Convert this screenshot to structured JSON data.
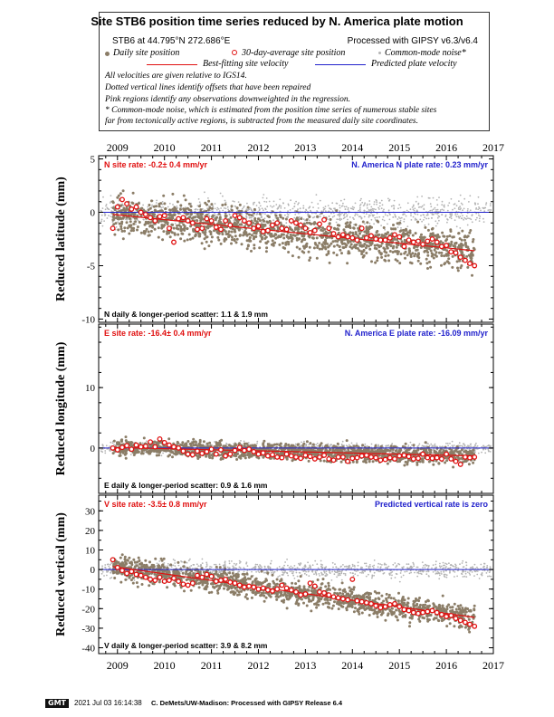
{
  "header": {
    "title": "Site STB6 position time series reduced by N. America plate motion",
    "site_line": "STB6 at 44.795°N 272.686°E",
    "processed": "Processed with GIPSY v6.3/v6.4",
    "legend": {
      "daily": "Daily site position",
      "avg30": "30-day-average site position",
      "cm_noise": "Common-mode noise*",
      "best_fit": "Best-fitting site velocity",
      "predicted": "Predicted plate velocity"
    },
    "notes": [
      "All velocities are given relative to IGS14.",
      "Dotted vertical lines identify offsets that have been repaired",
      "Pink regions identify any observations downweighted in the regression.",
      "* Common-mode noise, which is estimated from the position time series of numerous stable sites",
      "far from tectonically active regions, is subtracted from the measured daily site coordinates."
    ]
  },
  "footer": {
    "gmt_logo": "GMT",
    "timestamp": "2021 Jul 03 16:14:38",
    "credit": "C. DeMets/UW-Madison: Processed with GIPSY Release 6.4"
  },
  "colors": {
    "daily": "#8b7d67",
    "cm": "#b4b4b4",
    "avg": "#e01010",
    "fit": "#e01010",
    "pred": "#2222cc"
  },
  "chart_data": [
    {
      "type": "scatter",
      "component": "N",
      "ylabel": "Reduced latitude (mm)",
      "x_ticks": [
        "2009",
        "2010",
        "2011",
        "2012",
        "2013",
        "2014",
        "2015",
        "2016",
        "2017"
      ],
      "xlim": [
        2008.6,
        2017.0
      ],
      "ylim": [
        -10.3,
        5.3
      ],
      "y_ticks": [
        -10,
        -5,
        0,
        5
      ],
      "rate_label": "N site rate:  -0.2± 0.4 mm/yr",
      "plate_label": "N. America N plate rate: 0.23 mm/yr",
      "scatter_label": "N daily & longer-period scatter:   1.1 &   1.9 mm",
      "fit_line": {
        "x": [
          2008.9,
          2016.6
        ],
        "y": [
          -0.2,
          -3.6
        ]
      },
      "predicted_line": {
        "y": 0
      },
      "avg_30day": {
        "x": [
          2008.9,
          2009.0,
          2009.1,
          2009.2,
          2009.3,
          2009.4,
          2009.5,
          2009.6,
          2009.7,
          2009.8,
          2009.9,
          2010.0,
          2010.1,
          2010.2,
          2010.3,
          2010.4,
          2010.5,
          2010.6,
          2010.7,
          2010.8,
          2010.9,
          2011.0,
          2011.1,
          2011.2,
          2011.3,
          2011.4,
          2011.5,
          2011.6,
          2011.7,
          2011.8,
          2011.9,
          2012.0,
          2012.1,
          2012.2,
          2012.3,
          2012.4,
          2012.5,
          2012.6,
          2012.7,
          2012.8,
          2012.9,
          2013.0,
          2013.1,
          2013.2,
          2013.3,
          2013.4,
          2013.5,
          2013.6,
          2013.7,
          2013.8,
          2013.9,
          2014.0,
          2014.1,
          2014.2,
          2014.3,
          2014.4,
          2014.5,
          2014.6,
          2014.7,
          2014.8,
          2014.9,
          2015.0,
          2015.1,
          2015.2,
          2015.3,
          2015.4,
          2015.5,
          2015.6,
          2015.7,
          2015.8,
          2015.9,
          2016.0,
          2016.1,
          2016.2,
          2016.3,
          2016.4,
          2016.5,
          2016.6
        ],
        "y": [
          -1.5,
          0.5,
          1.2,
          0.8,
          0.3,
          0.5,
          0.0,
          -0.2,
          -0.5,
          -0.8,
          -0.4,
          -0.3,
          -1.5,
          -2.8,
          -0.6,
          -0.5,
          -0.8,
          -1.0,
          -1.6,
          -1.5,
          -0.6,
          -0.8,
          -1.4,
          -1.6,
          -0.8,
          -1.2,
          -0.3,
          -0.5,
          -0.8,
          -1.0,
          -1.5,
          -1.3,
          -1.8,
          -1.7,
          -1.2,
          -1.0,
          -1.5,
          -1.6,
          -0.8,
          -1.0,
          -1.2,
          -1.5,
          -1.9,
          -1.7,
          -1.1,
          -0.7,
          -1.5,
          -2.0,
          -2.3,
          -2.1,
          -2.3,
          -2.4,
          -2.6,
          -1.5,
          -2.4,
          -2.2,
          -2.5,
          -2.6,
          -2.6,
          -2.4,
          -2.1,
          -2.3,
          -3.2,
          -2.6,
          -2.8,
          -2.7,
          -3.0,
          -2.7,
          -2.5,
          -2.8,
          -3.2,
          -3.1,
          -3.7,
          -3.8,
          -4.2,
          -4.5,
          -4.8,
          -5.0
        ]
      }
    },
    {
      "type": "scatter",
      "component": "E",
      "ylabel": "Reduced longitude (mm)",
      "x_ticks": [
        "2009",
        "2010",
        "2011",
        "2012",
        "2013",
        "2014",
        "2015",
        "2016",
        "2017"
      ],
      "xlim": [
        2008.6,
        2017.0
      ],
      "ylim": [
        -7.5,
        20.5
      ],
      "y_ticks": [
        0,
        10
      ],
      "rate_label": "E site rate:  -16.4± 0.4 mm/yr",
      "plate_label": "N. America E plate rate: -16.09 mm/yr",
      "scatter_label": "E daily & longer-period scatter:   0.9 &   1.6 mm",
      "fit_line": {
        "x": [
          2008.9,
          2016.6
        ],
        "y": [
          0.1,
          -1.3
        ]
      },
      "predicted_line": {
        "y": 0
      },
      "avg_30day": {
        "x": [
          2008.9,
          2009.0,
          2009.1,
          2009.2,
          2009.3,
          2009.4,
          2009.5,
          2009.6,
          2009.7,
          2009.8,
          2009.9,
          2010.0,
          2010.1,
          2010.2,
          2010.3,
          2010.4,
          2010.5,
          2010.6,
          2010.7,
          2010.8,
          2010.9,
          2011.0,
          2011.1,
          2011.2,
          2011.3,
          2011.4,
          2011.5,
          2011.6,
          2011.7,
          2011.8,
          2011.9,
          2012.0,
          2012.1,
          2012.2,
          2012.3,
          2012.4,
          2012.5,
          2012.6,
          2012.7,
          2012.8,
          2012.9,
          2013.0,
          2013.1,
          2013.2,
          2013.3,
          2013.4,
          2013.5,
          2013.6,
          2013.7,
          2013.8,
          2013.9,
          2014.0,
          2014.1,
          2014.2,
          2014.3,
          2014.4,
          2014.5,
          2014.6,
          2014.7,
          2014.8,
          2014.9,
          2015.0,
          2015.1,
          2015.2,
          2015.3,
          2015.4,
          2015.5,
          2015.6,
          2015.7,
          2015.8,
          2015.9,
          2016.0,
          2016.1,
          2016.2,
          2016.3,
          2016.4,
          2016.5,
          2016.6
        ],
        "y": [
          0.0,
          -0.3,
          0.1,
          0.4,
          -0.2,
          0.5,
          0.2,
          0.3,
          1.0,
          0.2,
          1.5,
          0.9,
          0.5,
          0.2,
          0.0,
          -0.5,
          -1.0,
          -1.1,
          -0.5,
          -0.9,
          -0.6,
          -0.2,
          -1.0,
          -0.3,
          -1.3,
          -1.0,
          -0.4,
          0.1,
          -0.4,
          -0.2,
          -0.6,
          -1.0,
          -0.8,
          -1.3,
          -1.1,
          -1.5,
          -1.6,
          -1.0,
          -1.3,
          -1.5,
          -1.7,
          -1.2,
          -1.4,
          -1.8,
          -1.5,
          -1.2,
          -1.8,
          -2.0,
          -1.5,
          -1.5,
          -2.2,
          -1.7,
          -1.6,
          -1.3,
          -1.2,
          -1.5,
          -1.6,
          -2.0,
          -1.9,
          -1.6,
          -1.8,
          -1.3,
          -1.2,
          -1.4,
          -1.8,
          -1.7,
          -1.0,
          -1.6,
          -1.7,
          -1.6,
          -1.8,
          -1.0,
          -1.8,
          -2.2,
          -2.7,
          -1.5,
          -1.6,
          -1.5
        ]
      }
    },
    {
      "type": "scatter",
      "component": "V",
      "ylabel": "Reduced vertical (mm)",
      "x_ticks": [
        "2009",
        "2010",
        "2011",
        "2012",
        "2013",
        "2014",
        "2015",
        "2016",
        "2017"
      ],
      "xlim": [
        2008.6,
        2017.0
      ],
      "ylim": [
        -43,
        38
      ],
      "y_ticks": [
        -40,
        -30,
        -20,
        -10,
        0,
        10,
        20,
        30
      ],
      "rate_label": "V site rate:  -3.5± 0.8 mm/yr",
      "plate_label": "Predicted vertical rate is zero",
      "scatter_label": "V daily & longer-period scatter:   3.9 &   8.2 mm",
      "fit_line": {
        "x": [
          2008.9,
          2016.6
        ],
        "y": [
          1.5,
          -24.5
        ]
      },
      "predicted_line": {
        "y": 0
      },
      "avg_30day": {
        "x": [
          2008.9,
          2009.0,
          2009.1,
          2009.2,
          2009.3,
          2009.4,
          2009.5,
          2009.6,
          2009.7,
          2009.8,
          2009.9,
          2010.0,
          2010.1,
          2010.2,
          2010.3,
          2010.4,
          2010.5,
          2010.6,
          2010.7,
          2010.8,
          2010.9,
          2011.0,
          2011.1,
          2011.2,
          2011.3,
          2011.4,
          2011.5,
          2011.6,
          2011.7,
          2011.8,
          2011.9,
          2012.0,
          2012.1,
          2012.2,
          2012.3,
          2012.4,
          2012.5,
          2012.6,
          2012.7,
          2012.8,
          2012.9,
          2013.0,
          2013.1,
          2013.2,
          2013.3,
          2013.4,
          2013.5,
          2013.6,
          2013.7,
          2013.8,
          2013.9,
          2014.0,
          2014.1,
          2014.2,
          2014.3,
          2014.4,
          2014.5,
          2014.6,
          2014.7,
          2014.8,
          2014.9,
          2015.0,
          2015.1,
          2015.2,
          2015.3,
          2015.4,
          2015.5,
          2015.6,
          2015.7,
          2015.8,
          2015.9,
          2016.0,
          2016.1,
          2016.2,
          2016.3,
          2016.4,
          2016.5,
          2016.6
        ],
        "y": [
          5.0,
          1.0,
          -0.5,
          -2.0,
          -1.0,
          -2.5,
          -3.0,
          -4.0,
          -5.0,
          -5.5,
          -4.0,
          -6.0,
          -5.5,
          -4.5,
          -6.0,
          -7.5,
          -8.0,
          -7.0,
          -3.0,
          -4.0,
          -2.5,
          -3.5,
          -6.0,
          -5.5,
          -5.0,
          -6.5,
          -7.0,
          -8.0,
          -9.0,
          -8.5,
          -9.0,
          -10.0,
          -9.5,
          -10.5,
          -11.0,
          -10.0,
          -8.0,
          -9.5,
          -10.5,
          -11.5,
          -13.0,
          -12.5,
          -7.0,
          -8.5,
          -11.5,
          -12.0,
          -13.0,
          -14.0,
          -14.5,
          -15.0,
          -15.5,
          -5.0,
          -16.0,
          -16.5,
          -17.0,
          -17.5,
          -18.5,
          -19.5,
          -19.0,
          -18.0,
          -17.5,
          -19.0,
          -20.5,
          -21.0,
          -22.0,
          -22.5,
          -22.0,
          -21.5,
          -21.0,
          -22.0,
          -23.0,
          -24.0,
          -23.5,
          -25.0,
          -26.0,
          -27.0,
          -28.0,
          -29.0
        ]
      }
    }
  ]
}
